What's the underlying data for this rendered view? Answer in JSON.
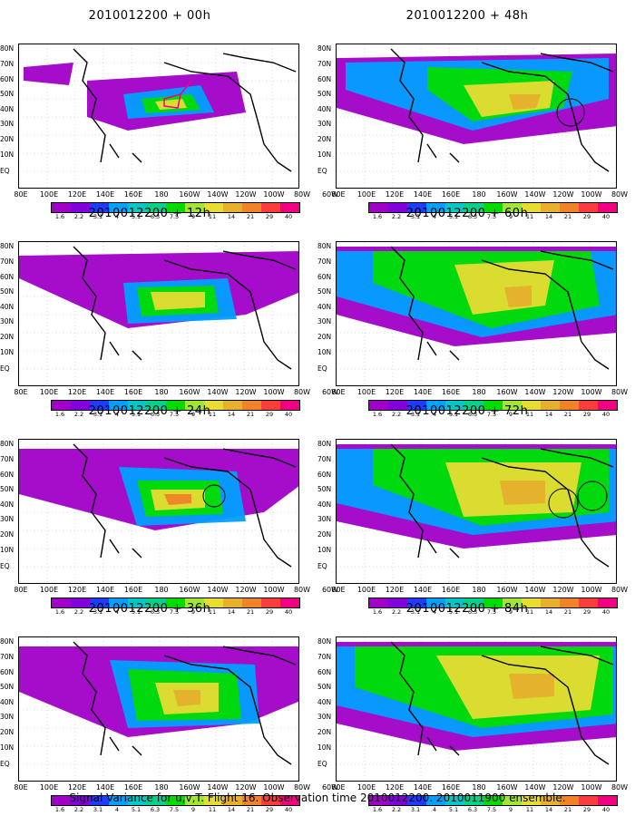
{
  "panels": [
    {
      "title": "2010012200 + 00h"
    },
    {
      "title": "2010012200 + 48h"
    },
    {
      "title": "2010012200 + 12h"
    },
    {
      "title": "2010012200 + 60h"
    },
    {
      "title": "2010012200 + 24h"
    },
    {
      "title": "2010012200 + 72h"
    },
    {
      "title": "2010012200 + 36h"
    },
    {
      "title": "2010012200 + 84h"
    }
  ],
  "lat_labels": [
    "80N",
    "70N",
    "60N",
    "50N",
    "40N",
    "30N",
    "20N",
    "10N",
    "EQ"
  ],
  "lon_labels": [
    "80E",
    "100E",
    "120E",
    "140E",
    "160E",
    "180",
    "160W",
    "140W",
    "120W",
    "100W",
    "80W",
    "60W"
  ],
  "colorbar": {
    "labels": [
      "1.6",
      "2.2",
      "3.1",
      "4",
      "5.1",
      "6.3",
      "7.5",
      "9",
      "11",
      "14",
      "21",
      "29",
      "40"
    ],
    "colors": [
      "#a000c8",
      "#8200dc",
      "#1e3cff",
      "#00a0ff",
      "#00c8c8",
      "#00d28c",
      "#00dc00",
      "#a0e632",
      "#e6dc32",
      "#e6af2d",
      "#f08228",
      "#fa3c3c",
      "#f00082"
    ]
  },
  "footer": "Signal Variance for u,v,T. Flight 16. Observation time 2010012200. 2010011900 ensemble."
}
